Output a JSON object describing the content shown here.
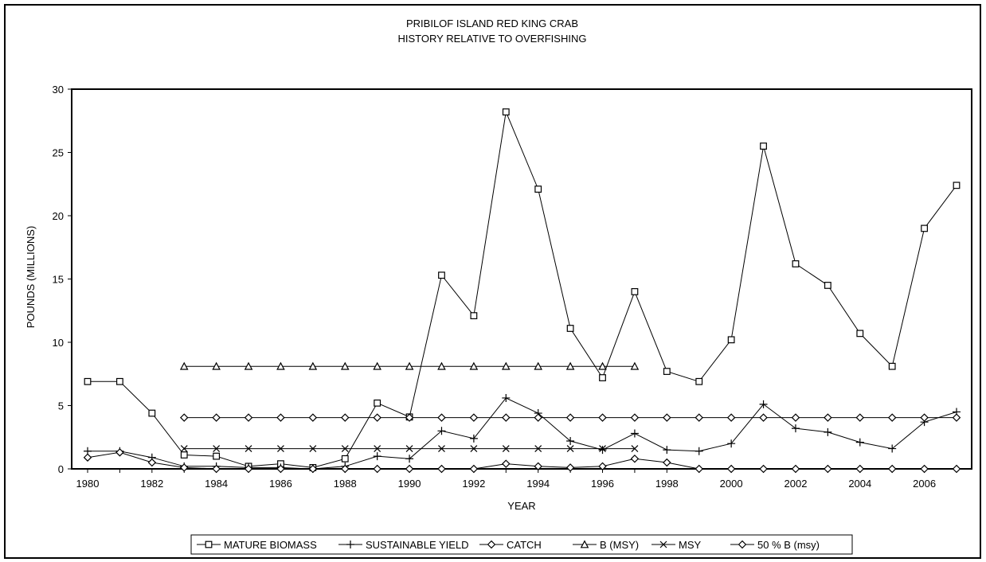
{
  "chart_data": {
    "type": "line",
    "title": [
      "PRIBILOF ISLAND RED KING CRAB",
      "HISTORY RELATIVE TO OVERFISHING"
    ],
    "xlabel": "YEAR",
    "ylabel": "POUNDS (MILLIONS)",
    "xlim": [
      1980,
      2007
    ],
    "ylim": [
      0,
      30
    ],
    "x_ticks": [
      1980,
      1982,
      1984,
      1986,
      1988,
      1990,
      1992,
      1994,
      1996,
      1998,
      2000,
      2002,
      2004,
      2006
    ],
    "y_ticks": [
      0,
      5,
      10,
      15,
      20,
      25,
      30
    ],
    "grid": false,
    "legend_position": "bottom",
    "series": [
      {
        "name": "MATURE BIOMASS",
        "marker": "square",
        "x": [
          1980,
          1981,
          1982,
          1983,
          1984,
          1985,
          1986,
          1987,
          1988,
          1989,
          1990,
          1991,
          1992,
          1993,
          1994,
          1995,
          1996,
          1997,
          1998,
          1999,
          2000,
          2001,
          2002,
          2003,
          2004,
          2005,
          2006,
          2007
        ],
        "y": [
          6.9,
          6.9,
          4.4,
          1.1,
          1.0,
          0.2,
          0.4,
          0.1,
          0.8,
          5.2,
          4.1,
          15.3,
          12.1,
          28.2,
          22.1,
          11.1,
          7.2,
          14.0,
          7.7,
          6.9,
          10.2,
          25.5,
          16.2,
          14.5,
          10.7,
          8.1,
          19.0,
          22.4
        ]
      },
      {
        "name": "SUSTAINABLE YIELD",
        "marker": "plus",
        "x": [
          1980,
          1981,
          1982,
          1983,
          1984,
          1985,
          1986,
          1987,
          1988,
          1989,
          1990,
          1991,
          1992,
          1993,
          1994,
          1995,
          1996,
          1997,
          1998,
          1999,
          2000,
          2001,
          2002,
          2003,
          2004,
          2005,
          2006,
          2007
        ],
        "y": [
          1.4,
          1.4,
          0.9,
          0.2,
          0.2,
          0.1,
          0.1,
          0.0,
          0.2,
          1.0,
          0.8,
          3.0,
          2.4,
          5.6,
          4.4,
          2.2,
          1.5,
          2.8,
          1.5,
          1.4,
          2.0,
          5.1,
          3.2,
          2.9,
          2.1,
          1.6,
          3.7,
          4.5
        ]
      },
      {
        "name": "CATCH",
        "marker": "diamond",
        "x": [
          1980,
          1981,
          1982,
          1983,
          1984,
          1985,
          1986,
          1987,
          1988,
          1989,
          1990,
          1991,
          1992,
          1993,
          1994,
          1995,
          1996,
          1997,
          1998,
          1999,
          2000,
          2001,
          2002,
          2003,
          2004,
          2005,
          2006,
          2007
        ],
        "y": [
          0.9,
          1.3,
          0.5,
          0.1,
          0.0,
          0.0,
          0.0,
          0.0,
          0.0,
          0.0,
          0.0,
          0.0,
          0.0,
          0.4,
          0.2,
          0.1,
          0.2,
          0.8,
          0.5,
          0.0,
          0.0,
          0.0,
          0.0,
          0.0,
          0.0,
          0.0,
          0.0,
          0.0
        ]
      },
      {
        "name": "B (MSY)",
        "marker": "triangle",
        "x": [
          1983,
          1984,
          1985,
          1986,
          1987,
          1988,
          1989,
          1990,
          1991,
          1992,
          1993,
          1994,
          1995,
          1996,
          1997
        ],
        "y": [
          8.1,
          8.1,
          8.1,
          8.1,
          8.1,
          8.1,
          8.1,
          8.1,
          8.1,
          8.1,
          8.1,
          8.1,
          8.1,
          8.1,
          8.1
        ]
      },
      {
        "name": "MSY",
        "marker": "x",
        "x": [
          1983,
          1984,
          1985,
          1986,
          1987,
          1988,
          1989,
          1990,
          1991,
          1992,
          1993,
          1994,
          1995,
          1996,
          1997
        ],
        "y": [
          1.6,
          1.6,
          1.6,
          1.6,
          1.6,
          1.6,
          1.6,
          1.6,
          1.6,
          1.6,
          1.6,
          1.6,
          1.6,
          1.6,
          1.6
        ]
      },
      {
        "name": "50 % B (msy)",
        "marker": "diamond",
        "x": [
          1983,
          1984,
          1985,
          1986,
          1987,
          1988,
          1989,
          1990,
          1991,
          1992,
          1993,
          1994,
          1995,
          1996,
          1997,
          1998,
          1999,
          2000,
          2001,
          2002,
          2003,
          2004,
          2005,
          2006,
          2007
        ],
        "y": [
          4.05,
          4.05,
          4.05,
          4.05,
          4.05,
          4.05,
          4.05,
          4.05,
          4.05,
          4.05,
          4.05,
          4.05,
          4.05,
          4.05,
          4.05,
          4.05,
          4.05,
          4.05,
          4.05,
          4.05,
          4.05,
          4.05,
          4.05,
          4.05,
          4.05
        ]
      }
    ]
  }
}
